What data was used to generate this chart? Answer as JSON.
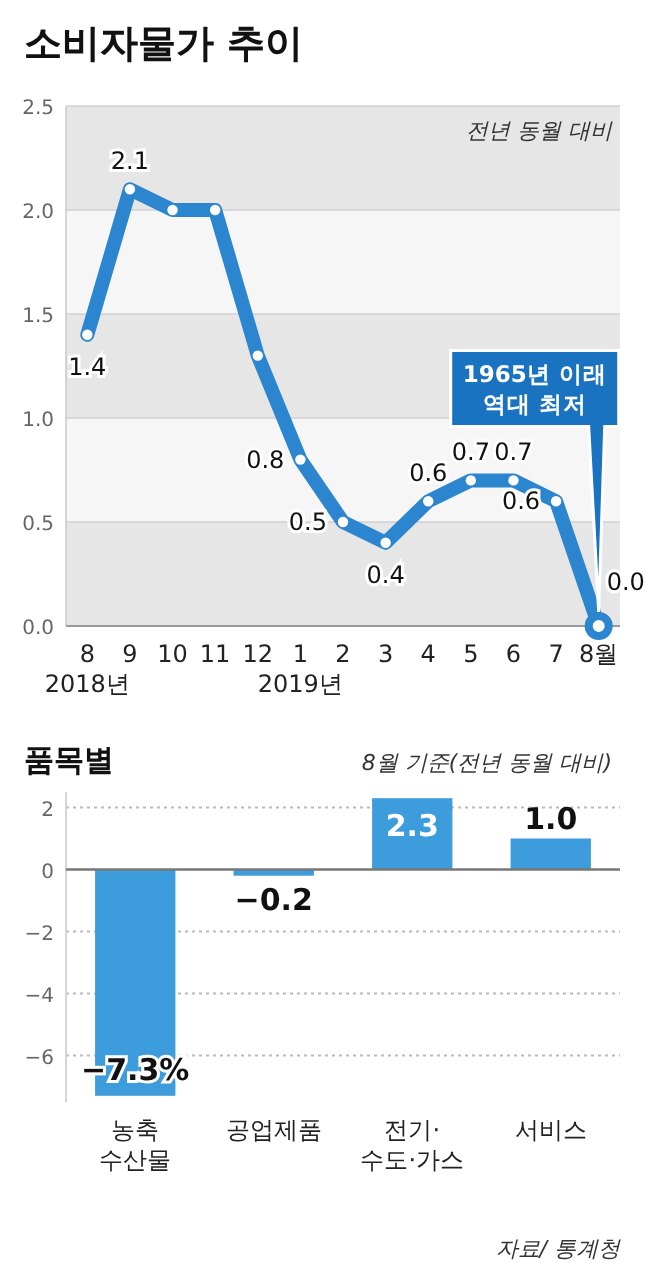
{
  "chart_data": [
    {
      "type": "line",
      "title": "소비자물가 추이",
      "subtitle": "전년 동월 대비",
      "categories": [
        "8\n2018년",
        "9",
        "10",
        "11",
        "12",
        "1\n2019년",
        "2",
        "3",
        "4",
        "5",
        "6",
        "7",
        "8월"
      ],
      "series": [
        {
          "color": "#2b86cf",
          "values": [
            1.4,
            2.1,
            2.0,
            2.0,
            1.3,
            0.8,
            0.5,
            0.4,
            0.6,
            0.7,
            0.7,
            0.6,
            0.0
          ],
          "value_labels": [
            "1.4",
            "2.1",
            null,
            null,
            null,
            "0.8",
            "0.5",
            "0.4",
            "0.6",
            "0.7",
            "0.7",
            "0.6",
            "0.0"
          ]
        }
      ],
      "ylim": [
        0,
        2.5
      ],
      "yticks": [
        {
          "value": 0,
          "label": "0.0"
        },
        {
          "value": 0.5,
          "label": "0.5"
        },
        {
          "value": 1,
          "label": "1.0"
        },
        {
          "value": 1.5,
          "label": "1.5"
        },
        {
          "value": 2,
          "label": "2.0"
        },
        {
          "value": 2.5,
          "label": "2.5"
        }
      ],
      "grid": "y",
      "marker": "circle",
      "annotations": [
        "1965년 이래\n역대 최저"
      ]
    },
    {
      "type": "bar",
      "title": "품목별",
      "subtitle": "8월 기준(전년 동월 대비)",
      "categories": [
        "농축\n수산물",
        "공업제품",
        "전기·\n수도·가스",
        "서비스"
      ],
      "values": [
        -7.3,
        -0.2,
        2.3,
        1.0
      ],
      "value_labels": [
        "−7.3%",
        "−0.2",
        "2.3",
        "1.0"
      ],
      "color": "#3d9ddc",
      "ylim": [
        -7.5,
        2.5
      ],
      "yticks": [
        {
          "value": 2,
          "label": "2"
        },
        {
          "value": 0,
          "label": "0"
        },
        {
          "value": -2,
          "label": "−2"
        },
        {
          "value": -4,
          "label": "−4"
        },
        {
          "value": -6,
          "label": "−6"
        }
      ],
      "grid": "y",
      "annotations": [
        "자료/ 통계청"
      ]
    }
  ]
}
